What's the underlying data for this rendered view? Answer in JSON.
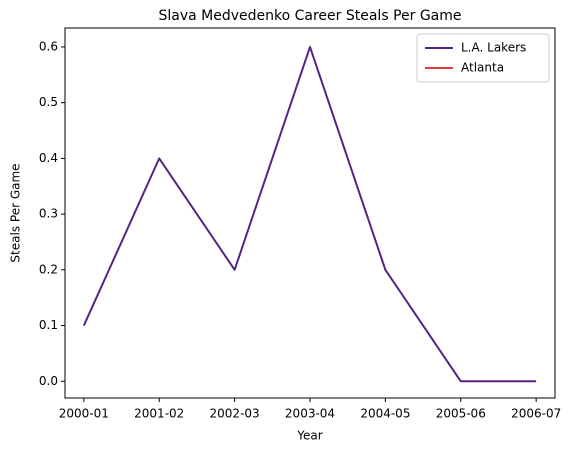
{
  "chart_data": {
    "type": "line",
    "title": "Slava Medvedenko Career Steals Per Game",
    "xlabel": "Year",
    "ylabel": "Steals Per Game",
    "categories": [
      "2000-01",
      "2001-02",
      "2002-03",
      "2003-04",
      "2004-05",
      "2005-06",
      "2006-07"
    ],
    "series": [
      {
        "name": "L.A. Lakers",
        "color": "#552583",
        "values": [
          0.1,
          0.4,
          0.2,
          0.6,
          0.2,
          0.0,
          0.0
        ]
      },
      {
        "name": "Atlanta",
        "color": "#e03a3e",
        "values": [
          null,
          null,
          null,
          null,
          null,
          0.0,
          null
        ]
      }
    ],
    "ylim": [
      -0.03,
      0.634
    ],
    "yticks": [
      {
        "value": 0,
        "label": "0.0"
      },
      0.1,
      0.2,
      0.3,
      0.4,
      0.5,
      0.6
    ],
    "legend": "upper right",
    "grid": false
  }
}
